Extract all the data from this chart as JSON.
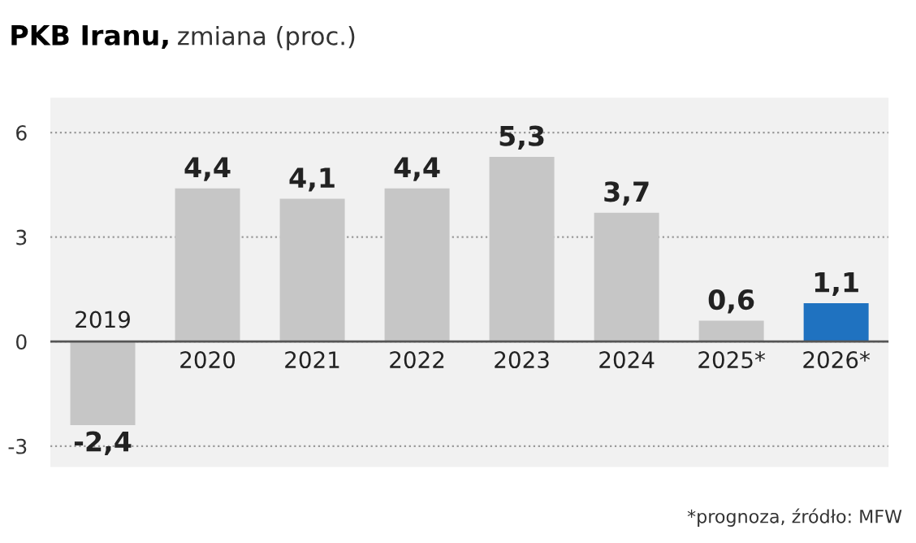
{
  "chart_data": {
    "type": "bar",
    "title": "PKB Iranu,",
    "subtitle": "zmiana (proc.)",
    "categories": [
      "2019",
      "2020",
      "2021",
      "2022",
      "2023",
      "2024",
      "2025*",
      "2026*"
    ],
    "values": [
      -2.4,
      4.4,
      4.1,
      4.4,
      5.3,
      3.7,
      0.6,
      1.1
    ],
    "colors": [
      "#c6c6c6",
      "#c6c6c6",
      "#c6c6c6",
      "#c6c6c6",
      "#c6c6c6",
      "#c6c6c6",
      "#c6c6c6",
      "#1f72c0"
    ],
    "value_labels": [
      "-2,4",
      "4,4",
      "4,1",
      "4,4",
      "5,3",
      "3,7",
      "0,6",
      "1,1"
    ],
    "ylim": [
      -3.6,
      7
    ],
    "yticks": [
      -3,
      0,
      3,
      6
    ],
    "grid": "y",
    "annotations": [
      "*prognoza, źródło: MFW"
    ]
  }
}
